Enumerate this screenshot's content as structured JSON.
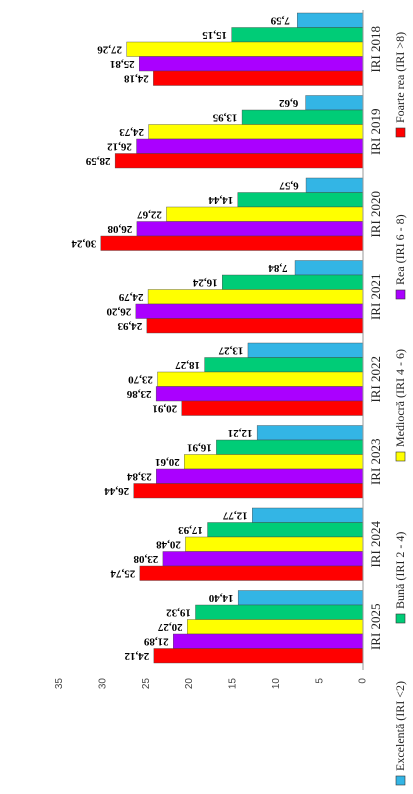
{
  "chart_data": {
    "type": "bar",
    "orientation": "horizontal",
    "categories": [
      "IRI 2018",
      "IRI 2019",
      "IRI 2020",
      "IRI 2021",
      "IRI 2022",
      "IRI 2023",
      "IRI 2024",
      "IRI 2025"
    ],
    "series": [
      {
        "name": "Excelentă (IRI <2)",
        "color": "#33b5e5",
        "values": [
          7.59,
          6.62,
          6.57,
          7.84,
          13.27,
          12.21,
          12.77,
          14.4
        ],
        "labels": [
          "7,59",
          "6,62",
          "6,57",
          "7,84",
          "13,27",
          "12,21",
          "12,77",
          "14,40"
        ]
      },
      {
        "name": "Bună (IRI 2 - 4)",
        "color": "#00cc77",
        "values": [
          15.15,
          13.95,
          14.44,
          16.24,
          18.27,
          16.91,
          17.93,
          19.32
        ],
        "labels": [
          "15,15",
          "13,95",
          "14,44",
          "16,24",
          "18,27",
          "16,91",
          "17,93",
          "19,32"
        ]
      },
      {
        "name": "Mediocră (IRI 4 - 6)",
        "color": "#ffff00",
        "values": [
          27.26,
          24.73,
          22.67,
          24.79,
          23.7,
          20.61,
          20.48,
          20.27
        ],
        "labels": [
          "27,26",
          "24,73",
          "22,67",
          "24,79",
          "23,70",
          "20,61",
          "20,48",
          "20,27"
        ]
      },
      {
        "name": "Rea (IRI 6 - 8)",
        "color": "#aa00ff",
        "values": [
          25.81,
          26.12,
          26.08,
          26.2,
          23.86,
          23.84,
          23.08,
          21.89
        ],
        "labels": [
          "25,81",
          "26,12",
          "26,08",
          "26,20",
          "23,86",
          "23,84",
          "23,08",
          "21,89"
        ]
      },
      {
        "name": "Foarte rea (IRI >8)",
        "color": "#ff0000",
        "values": [
          24.18,
          28.59,
          30.24,
          24.93,
          20.91,
          26.44,
          25.74,
          24.12
        ],
        "labels": [
          "24,18",
          "28,59",
          "30,24",
          "24,93",
          "20,91",
          "26,44",
          "25,74",
          "24,12"
        ]
      }
    ],
    "xlim": [
      0,
      35
    ],
    "ticks": [
      "35",
      "30",
      "25",
      "20",
      "15",
      "10",
      "5",
      "0"
    ],
    "tick_values": [
      35,
      30,
      25,
      20,
      15,
      10,
      5,
      0
    ],
    "legend_position": "bottom",
    "grid": false
  }
}
